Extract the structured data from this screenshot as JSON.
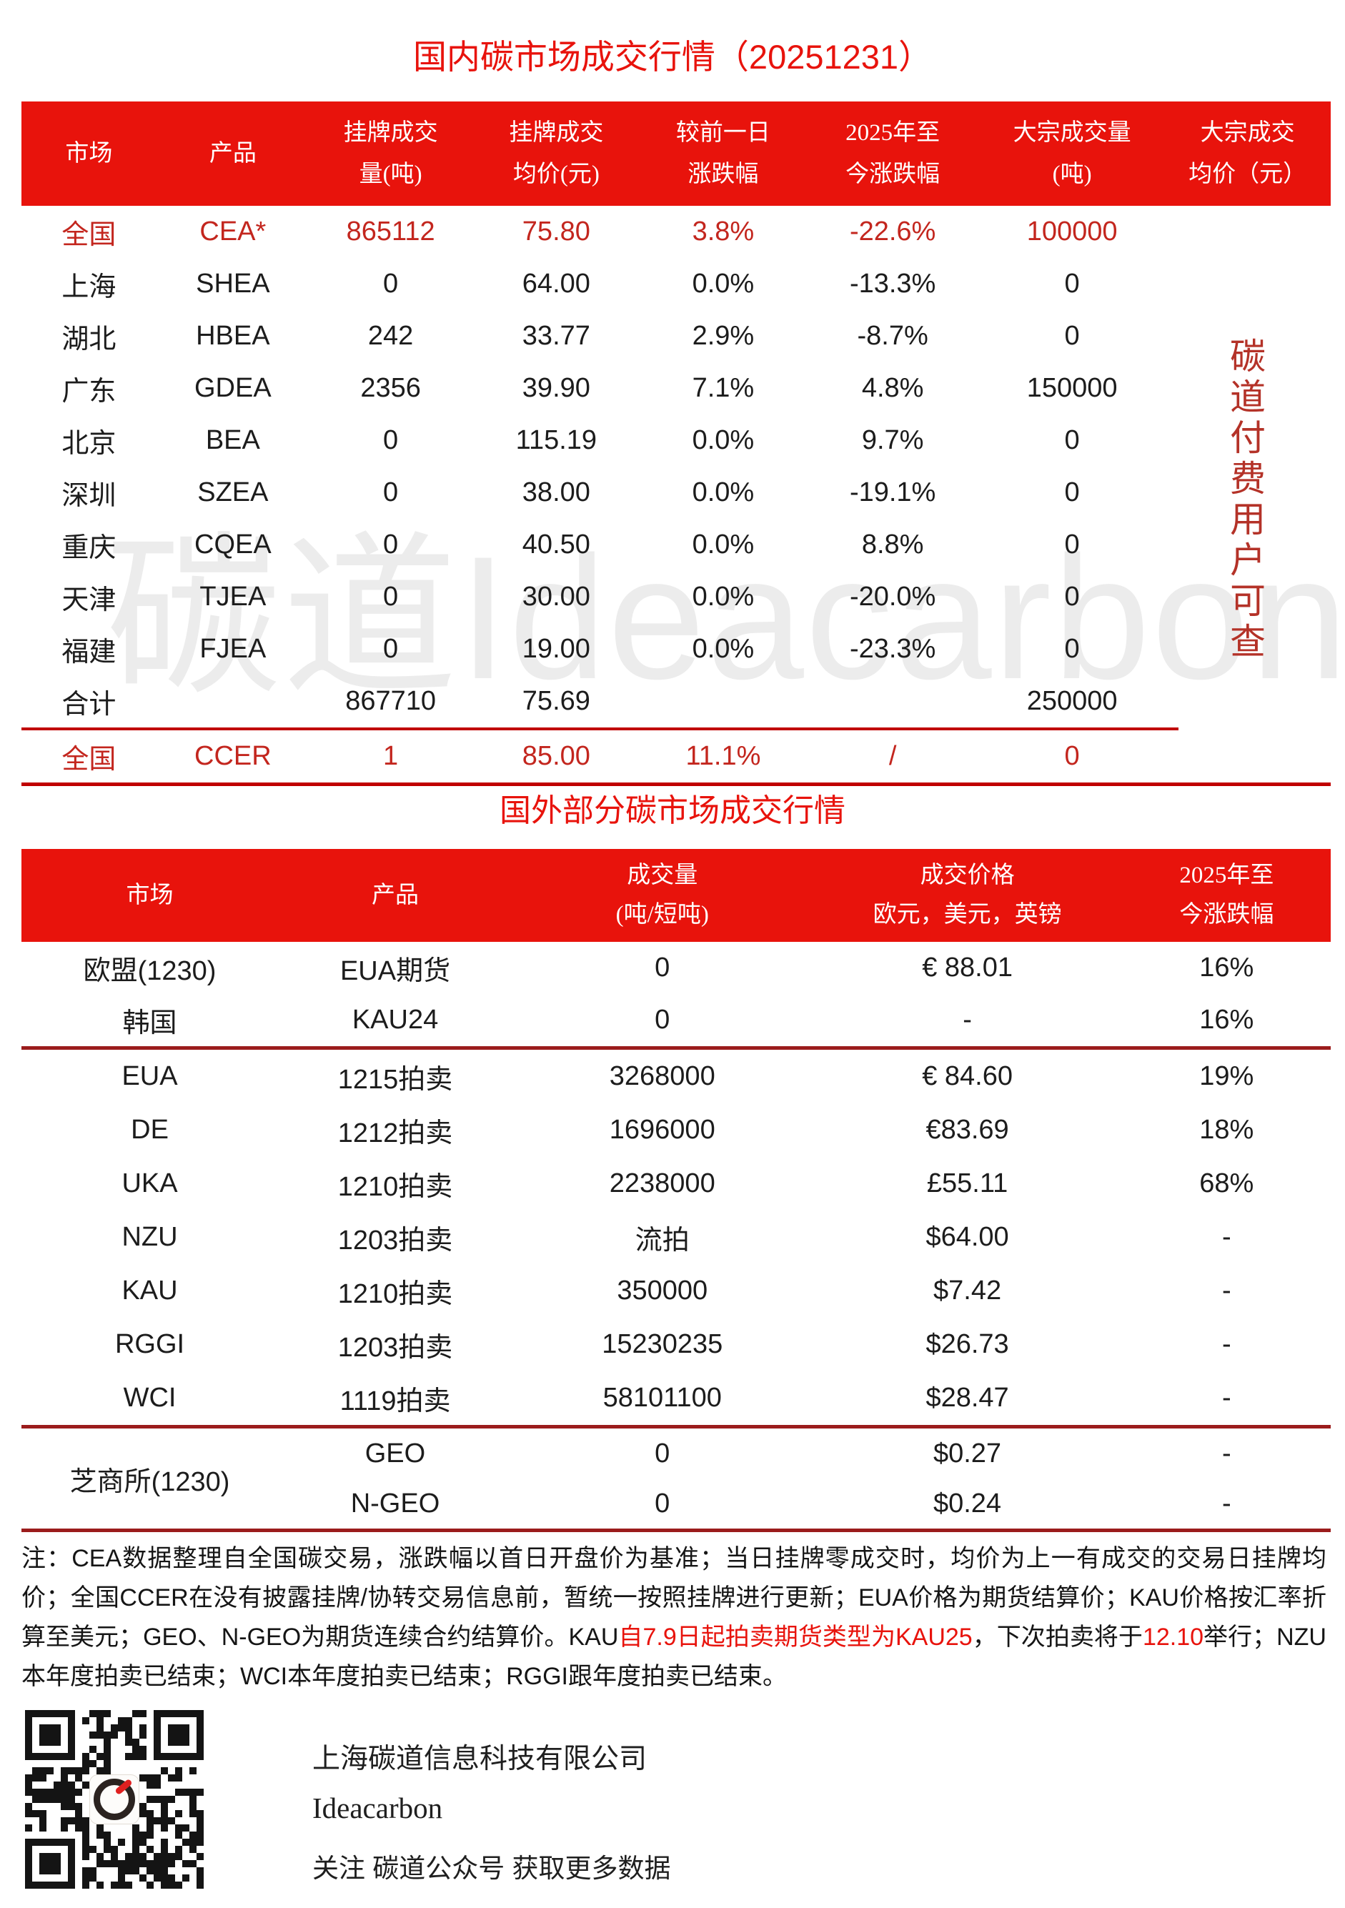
{
  "colors": {
    "accent_red": "#e8130c",
    "row_red": "#c3261e",
    "rule_red": "#c00000",
    "rule_maroon": "#9b1c1c",
    "side_note_red": "#b43228",
    "watermark_gray": "#ececec"
  },
  "watermark": "碳道Ideacarbon",
  "side_note": "碳道付费用户可查",
  "domestic": {
    "title": "国内碳市场成交行情（20251231）",
    "columns": [
      {
        "l1": "市场",
        "l2": ""
      },
      {
        "l1": "产品",
        "l2": ""
      },
      {
        "l1": "挂牌成交",
        "l2": "量(吨)"
      },
      {
        "l1": "挂牌成交",
        "l2": "均价(元)"
      },
      {
        "l1": "较前一日",
        "l2": "涨跌幅"
      },
      {
        "l1": "2025年至",
        "l2": "今涨跌幅"
      },
      {
        "l1": "大宗成交量",
        "l2": "(吨)"
      },
      {
        "l1": "大宗成交",
        "l2": "均价（元）"
      }
    ],
    "rows": [
      [
        "全国",
        "CEA*",
        "865112",
        "75.80",
        "3.8%",
        "-22.6%",
        "100000",
        ""
      ],
      [
        "上海",
        "SHEA",
        "0",
        "64.00",
        "0.0%",
        "-13.3%",
        "0",
        ""
      ],
      [
        "湖北",
        "HBEA",
        "242",
        "33.77",
        "2.9%",
        "-8.7%",
        "0",
        ""
      ],
      [
        "广东",
        "GDEA",
        "2356",
        "39.90",
        "7.1%",
        "4.8%",
        "150000",
        ""
      ],
      [
        "北京",
        "BEA",
        "0",
        "115.19",
        "0.0%",
        "9.7%",
        "0",
        ""
      ],
      [
        "深圳",
        "SZEA",
        "0",
        "38.00",
        "0.0%",
        "-19.1%",
        "0",
        ""
      ],
      [
        "重庆",
        "CQEA",
        "0",
        "40.50",
        "0.0%",
        "8.8%",
        "0",
        ""
      ],
      [
        "天津",
        "TJEA",
        "0",
        "30.00",
        "0.0%",
        "-20.0%",
        "0",
        ""
      ],
      [
        "福建",
        "FJEA",
        "0",
        "19.00",
        "0.0%",
        "-23.3%",
        "0",
        ""
      ],
      [
        "合计",
        "",
        "867710",
        "75.69",
        "",
        "",
        "250000",
        ""
      ]
    ],
    "ccer": [
      "全国",
      "CCER",
      "1",
      "85.00",
      "11.1%",
      "/",
      "0",
      ""
    ]
  },
  "foreign": {
    "title": "国外部分碳市场成交行情",
    "columns": [
      {
        "l1": "市场",
        "l2": ""
      },
      {
        "l1": "产品",
        "l2": ""
      },
      {
        "l1": "成交量",
        "l2": "(吨/短吨)"
      },
      {
        "l1": "成交价格",
        "l2": "欧元，美元，英镑"
      },
      {
        "l1": "2025年至",
        "l2": "今涨跌幅"
      }
    ],
    "rows": [
      [
        "欧盟(1230)",
        "EUA期货",
        "0",
        "€ 88.01",
        "16%"
      ],
      [
        "韩国",
        "KAU24",
        "0",
        "-",
        "16%"
      ],
      [
        "EUA",
        "1215拍卖",
        "3268000",
        "€ 84.60",
        "19%"
      ],
      [
        "DE",
        "1212拍卖",
        "1696000",
        "€83.69",
        "18%"
      ],
      [
        "UKA",
        "1210拍卖",
        "2238000",
        "£55.11",
        "68%"
      ],
      [
        "NZU",
        "1203拍卖",
        "流拍",
        "$64.00",
        "-"
      ],
      [
        "KAU",
        "1210拍卖",
        "350000",
        "$7.42",
        "-"
      ],
      [
        "RGGI",
        "1203拍卖",
        "15230235",
        "$26.73",
        "-"
      ],
      [
        "WCI",
        "1119拍卖",
        "58101100",
        "$28.47",
        "-"
      ]
    ],
    "cme": {
      "market": "芝商所(1230)",
      "rows": [
        [
          "GEO",
          "0",
          "$0.27",
          "-"
        ],
        [
          "N-GEO",
          "0",
          "$0.24",
          "-"
        ]
      ]
    }
  },
  "notes": {
    "segments": [
      {
        "text": "注：CEA数据整理自全国碳交易，涨跌幅以首日开盘价为基准；当日挂牌零成交时，均价为上一有成交的交易日挂牌均价；全国CCER在没有披露挂牌/协转交易信息前，暂统一按照挂牌进行更新；EUA价格为期货结算价；KAU价格按汇率折算至美元；GEO、N-GEO为期货连续合约结算价。KAU",
        "red": false
      },
      {
        "text": "自7.9日起拍卖期货类型为KAU25",
        "red": true
      },
      {
        "text": "，下次拍卖将于",
        "red": false
      },
      {
        "text": "12.10",
        "red": true
      },
      {
        "text": "举行；NZU本年度拍卖已结束；WCI本年度拍卖已结束；RGGI跟年度拍卖已结束。",
        "red": false
      }
    ]
  },
  "footer": {
    "company": "上海碳道信息科技有限公司",
    "brand": "Ideacarbon",
    "cta": "关注 碳道公众号 获取更多数据"
  }
}
